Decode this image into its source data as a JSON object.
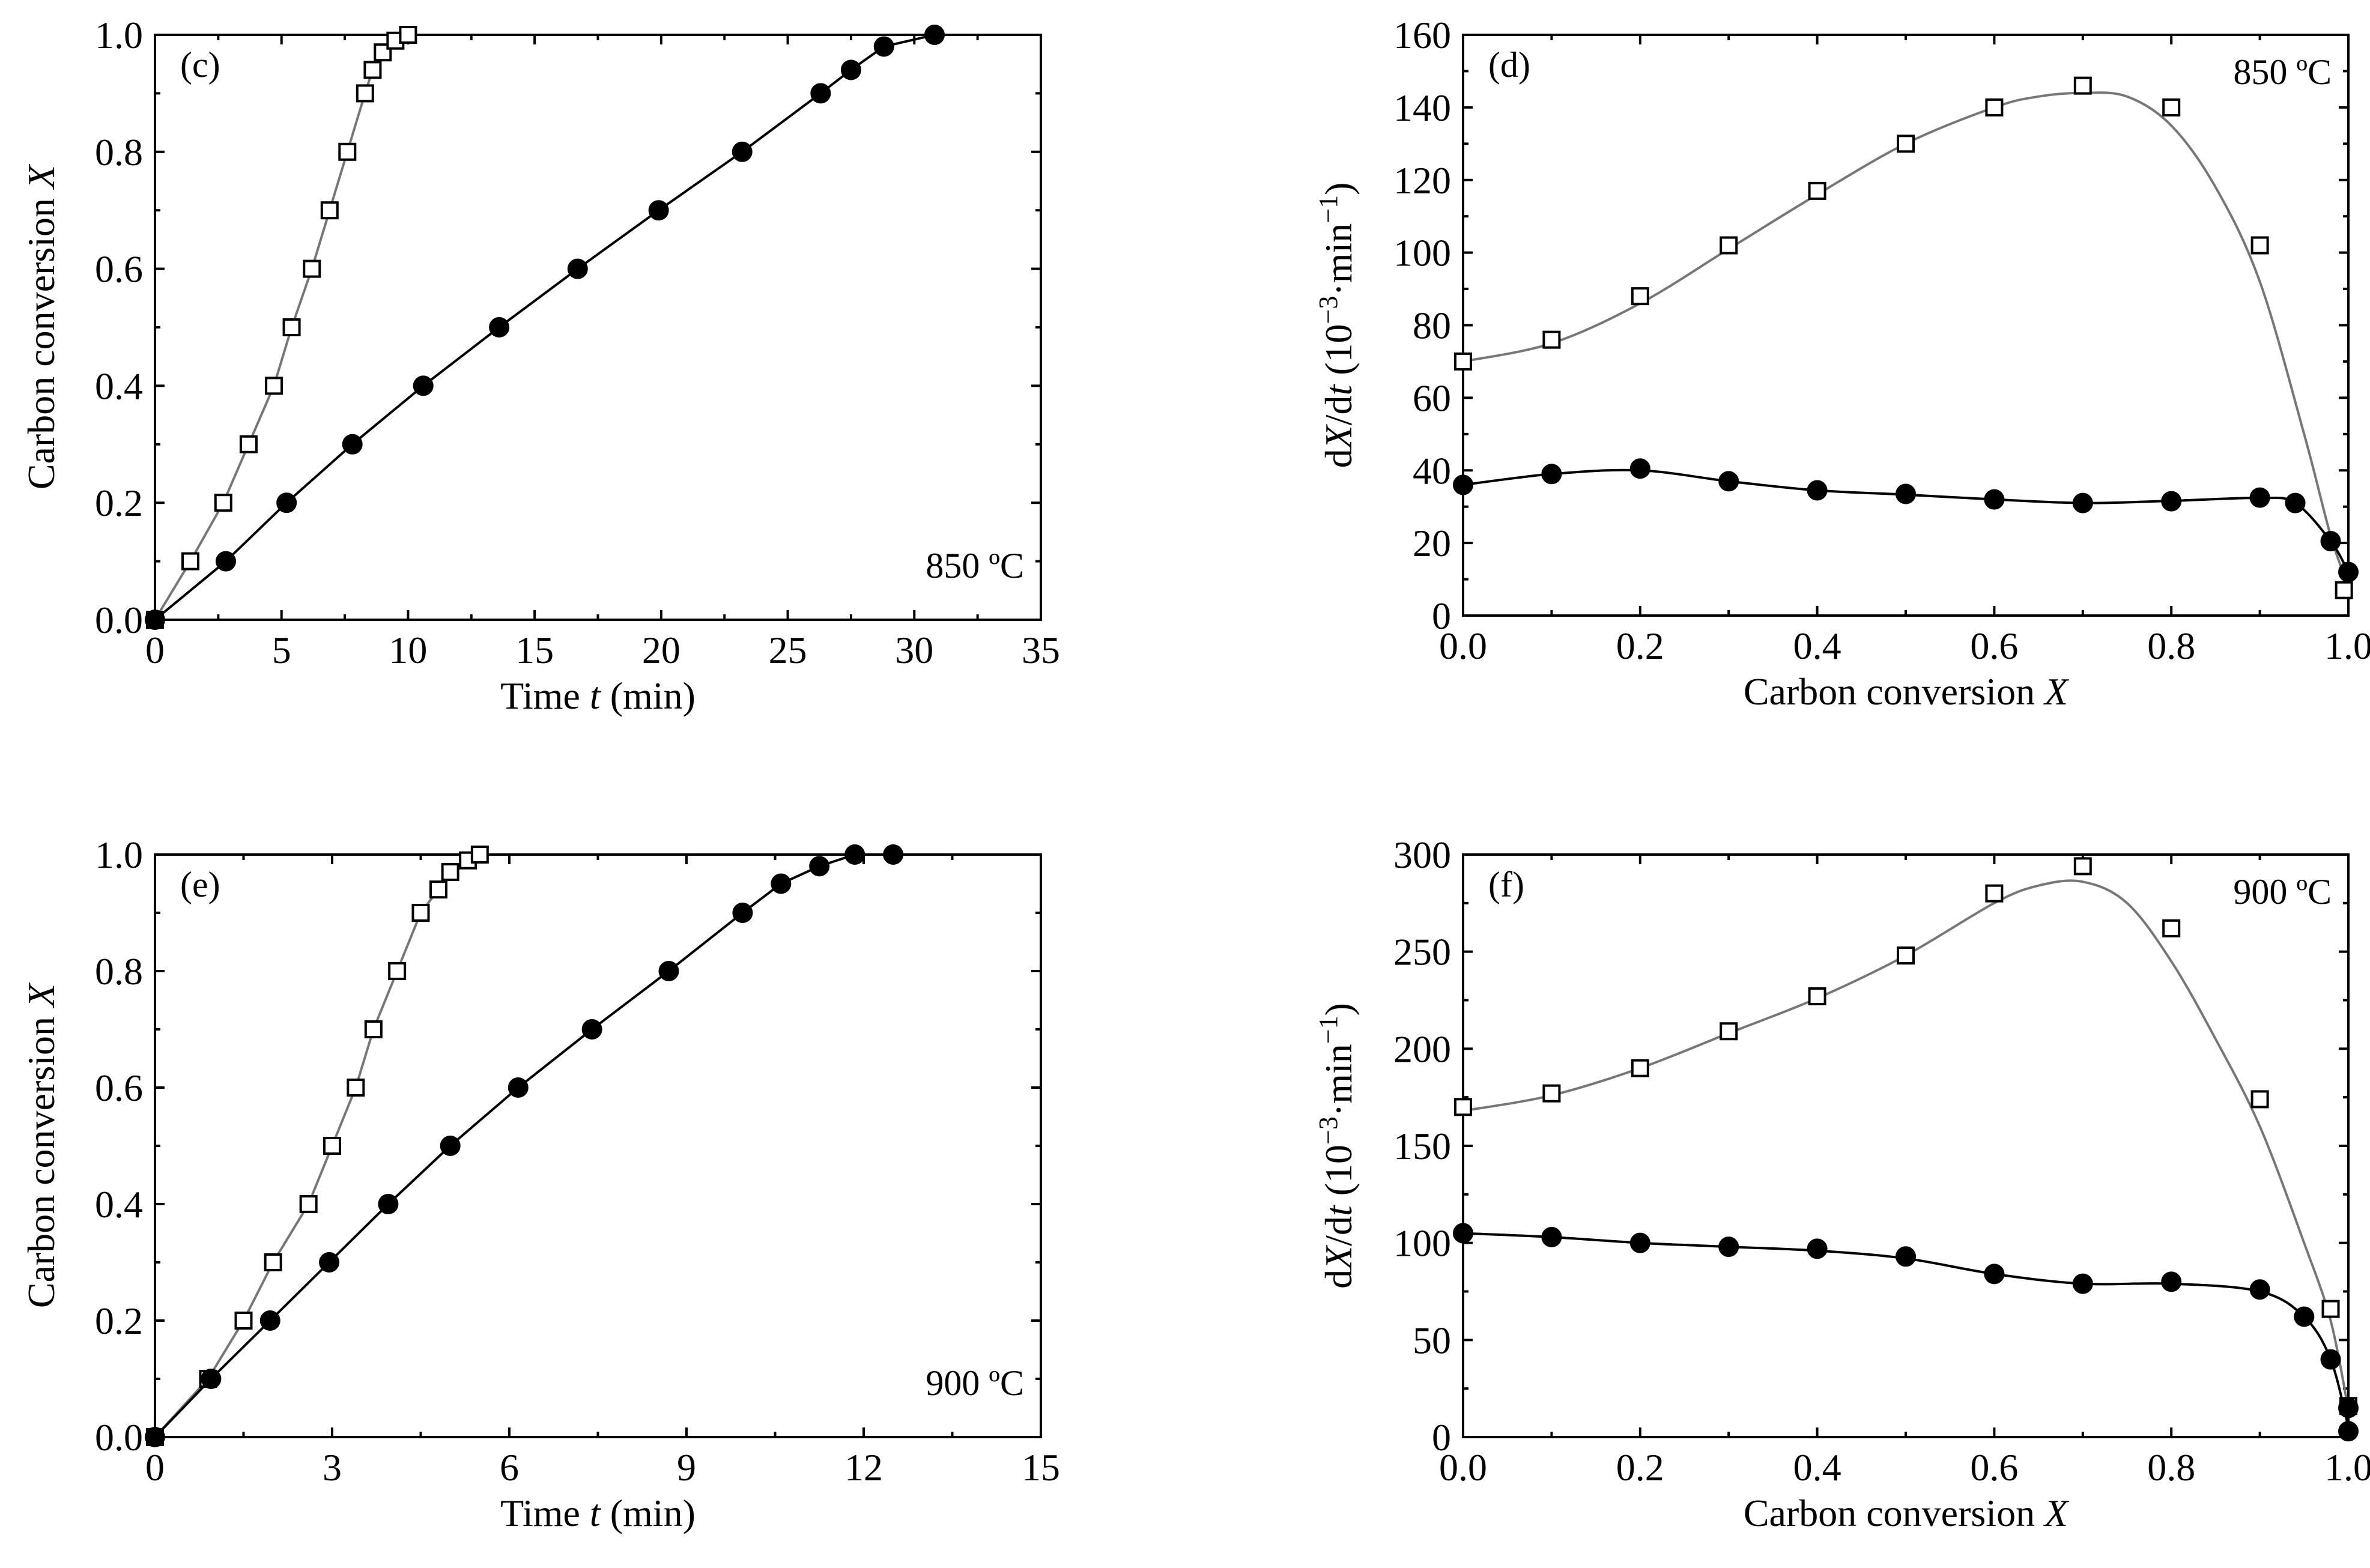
{
  "chart_data": [
    {
      "id": "c",
      "type": "line",
      "panel_label": "(c)",
      "annotation": "850 ºC",
      "xlabel_pre": "Time ",
      "xlabel_var": "t",
      "xlabel_post": " (min)",
      "ylabel_pre": "Carbon conversion ",
      "ylabel_var": "X",
      "xlim": [
        0,
        35
      ],
      "ylim": [
        0,
        1.0
      ],
      "x_ticks": [
        0,
        5,
        10,
        15,
        20,
        25,
        30,
        35
      ],
      "x_tick_labels": [
        "0",
        "5",
        "10",
        "15",
        "20",
        "25",
        "30",
        "35"
      ],
      "y_ticks": [
        0,
        0.2,
        0.4,
        0.6,
        0.8,
        1.0
      ],
      "y_tick_labels": [
        "0.0",
        "0.2",
        "0.4",
        "0.6",
        "0.8",
        "1.0"
      ],
      "series": [
        {
          "name": "open squares",
          "marker": "open-square",
          "x": [
            0,
            1.4,
            2.7,
            3.7,
            4.7,
            5.4,
            6.2,
            6.9,
            7.6,
            8.3,
            8.6,
            9.0,
            9.5,
            10.0
          ],
          "y": [
            0,
            0.1,
            0.2,
            0.3,
            0.4,
            0.5,
            0.6,
            0.7,
            0.8,
            0.9,
            0.94,
            0.97,
            0.99,
            1.0
          ]
        },
        {
          "name": "filled circles",
          "marker": "filled-circle",
          "x": [
            0,
            2.8,
            5.2,
            7.8,
            10.6,
            13.6,
            16.7,
            19.9,
            23.2,
            26.3,
            27.5,
            28.8,
            30.8
          ],
          "y": [
            0,
            0.1,
            0.2,
            0.3,
            0.4,
            0.5,
            0.6,
            0.7,
            0.8,
            0.9,
            0.94,
            0.98,
            1.0
          ]
        }
      ]
    },
    {
      "id": "d",
      "type": "line",
      "panel_label": "(d)",
      "annotation": "850 ºC",
      "xlabel_pre": "Carbon conversion ",
      "xlabel_var": "X",
      "xlabel_post": "",
      "ylabel_pre": "d",
      "ylabel_var": "X",
      "ylabel_post": "/d",
      "ylabel_var2": "t",
      "ylabel_unit": " (10",
      "ylabel_exp1": "−3",
      "ylabel_mid": "·min",
      "ylabel_exp2": "−1",
      "ylabel_end": ")",
      "xlim": [
        0,
        1.0
      ],
      "ylim": [
        0,
        160
      ],
      "x_ticks": [
        0,
        0.2,
        0.4,
        0.6,
        0.8,
        1.0
      ],
      "x_tick_labels": [
        "0.0",
        "0.2",
        "0.4",
        "0.6",
        "0.8",
        "1.0"
      ],
      "y_ticks": [
        0,
        20,
        40,
        60,
        80,
        100,
        120,
        140,
        160
      ],
      "y_tick_labels": [
        "0",
        "20",
        "40",
        "60",
        "80",
        "100",
        "120",
        "140",
        "160"
      ],
      "series": [
        {
          "name": "open squares",
          "marker": "open-square",
          "x": [
            0,
            0.1,
            0.2,
            0.3,
            0.4,
            0.5,
            0.6,
            0.7,
            0.8,
            0.9,
            0.995
          ],
          "y": [
            70,
            76,
            88,
            102,
            117,
            130,
            140,
            146,
            140,
            102,
            7
          ],
          "curve_x": [
            0,
            0.1,
            0.2,
            0.3,
            0.4,
            0.5,
            0.6,
            0.65,
            0.7,
            0.75,
            0.8,
            0.85,
            0.9,
            0.95,
            0.98,
            1.0
          ],
          "curve_y": [
            70,
            75,
            86,
            101,
            116,
            130,
            140,
            143,
            144,
            143,
            135,
            118,
            92,
            50,
            22,
            8
          ]
        },
        {
          "name": "filled circles",
          "marker": "filled-circle",
          "x": [
            0,
            0.1,
            0.2,
            0.3,
            0.4,
            0.5,
            0.6,
            0.7,
            0.8,
            0.9,
            0.94,
            0.98,
            1.0
          ],
          "y": [
            36,
            39,
            40.5,
            37,
            34.5,
            33.5,
            32,
            31,
            31.5,
            32.5,
            31,
            20.5,
            12
          ],
          "curve_x": [
            0,
            0.1,
            0.2,
            0.3,
            0.4,
            0.5,
            0.6,
            0.7,
            0.8,
            0.9,
            0.94,
            0.98,
            1.0
          ],
          "curve_y": [
            36,
            39,
            40,
            37,
            34.5,
            33.3,
            32,
            31,
            31.6,
            32.4,
            31,
            20.5,
            12
          ]
        }
      ]
    },
    {
      "id": "e",
      "type": "line",
      "panel_label": "(e)",
      "annotation": "900 ºC",
      "xlabel_pre": "Time ",
      "xlabel_var": "t",
      "xlabel_post": " (min)",
      "ylabel_pre": "Carbon conversion ",
      "ylabel_var": "X",
      "xlim": [
        0,
        15
      ],
      "ylim": [
        0,
        1.0
      ],
      "x_ticks": [
        0,
        3,
        6,
        9,
        12,
        15
      ],
      "x_tick_labels": [
        "0",
        "3",
        "6",
        "9",
        "12",
        "15"
      ],
      "y_ticks": [
        0,
        0.2,
        0.4,
        0.6,
        0.8,
        1.0
      ],
      "y_tick_labels": [
        "0.0",
        "0.2",
        "0.4",
        "0.6",
        "0.8",
        "1.0"
      ],
      "series": [
        {
          "name": "open squares",
          "marker": "open-square",
          "x": [
            0,
            0.9,
            1.5,
            2.0,
            2.6,
            3.0,
            3.4,
            3.7,
            4.1,
            4.5,
            4.8,
            5.0,
            5.3,
            5.5
          ],
          "y": [
            0,
            0.1,
            0.2,
            0.3,
            0.4,
            0.5,
            0.6,
            0.7,
            0.8,
            0.9,
            0.94,
            0.97,
            0.99,
            1.0
          ]
        },
        {
          "name": "filled circles",
          "marker": "filled-circle",
          "x": [
            0,
            0.95,
            1.95,
            2.95,
            3.95,
            5.0,
            6.15,
            7.4,
            8.7,
            9.95,
            10.6,
            11.25,
            11.85,
            12.5
          ],
          "y": [
            0,
            0.1,
            0.2,
            0.3,
            0.4,
            0.5,
            0.6,
            0.7,
            0.8,
            0.9,
            0.95,
            0.98,
            1.0,
            1.0
          ]
        }
      ]
    },
    {
      "id": "f",
      "type": "line",
      "panel_label": "(f)",
      "annotation": "900 ºC",
      "xlabel_pre": "Carbon conversion ",
      "xlabel_var": "X",
      "xlabel_post": "",
      "ylabel_pre": "d",
      "ylabel_var": "X",
      "ylabel_post": "/d",
      "ylabel_var2": "t",
      "ylabel_unit": " (10",
      "ylabel_exp1": "−3",
      "ylabel_mid": "·min",
      "ylabel_exp2": "−1",
      "ylabel_end": ")",
      "xlim": [
        0,
        1.0
      ],
      "ylim": [
        0,
        300
      ],
      "x_ticks": [
        0,
        0.2,
        0.4,
        0.6,
        0.8,
        1.0
      ],
      "x_tick_labels": [
        "0.0",
        "0.2",
        "0.4",
        "0.6",
        "0.8",
        "1.0"
      ],
      "y_ticks": [
        0,
        50,
        100,
        150,
        200,
        250,
        300
      ],
      "y_tick_labels": [
        "0",
        "50",
        "100",
        "150",
        "200",
        "250",
        "300"
      ],
      "series": [
        {
          "name": "open squares",
          "marker": "open-square",
          "x": [
            0,
            0.1,
            0.2,
            0.3,
            0.4,
            0.5,
            0.6,
            0.7,
            0.8,
            0.9,
            0.98,
            1.0
          ],
          "y": [
            170,
            177,
            190,
            209,
            227,
            248,
            280,
            294,
            262,
            174,
            66,
            16
          ],
          "curve_x": [
            0,
            0.1,
            0.2,
            0.3,
            0.4,
            0.5,
            0.6,
            0.65,
            0.7,
            0.75,
            0.8,
            0.85,
            0.9,
            0.95,
            0.98,
            1.0
          ],
          "curve_y": [
            168,
            176,
            190,
            208,
            226,
            248,
            275,
            284,
            286,
            275,
            245,
            205,
            160,
            100,
            60,
            14
          ]
        },
        {
          "name": "filled circles",
          "marker": "filled-circle",
          "x": [
            0,
            0.1,
            0.2,
            0.3,
            0.4,
            0.5,
            0.6,
            0.7,
            0.8,
            0.9,
            0.95,
            0.98,
            1.0,
            1.0
          ],
          "y": [
            105,
            103,
            100,
            98,
            97,
            93,
            84,
            79,
            80,
            76,
            62,
            40,
            15,
            3
          ],
          "curve_x": [
            0,
            0.1,
            0.2,
            0.3,
            0.4,
            0.5,
            0.6,
            0.7,
            0.8,
            0.9,
            0.95,
            0.98,
            1.0
          ],
          "curve_y": [
            105,
            103,
            100,
            98,
            96,
            92,
            84,
            79,
            79,
            75,
            62,
            40,
            5
          ]
        }
      ]
    }
  ]
}
